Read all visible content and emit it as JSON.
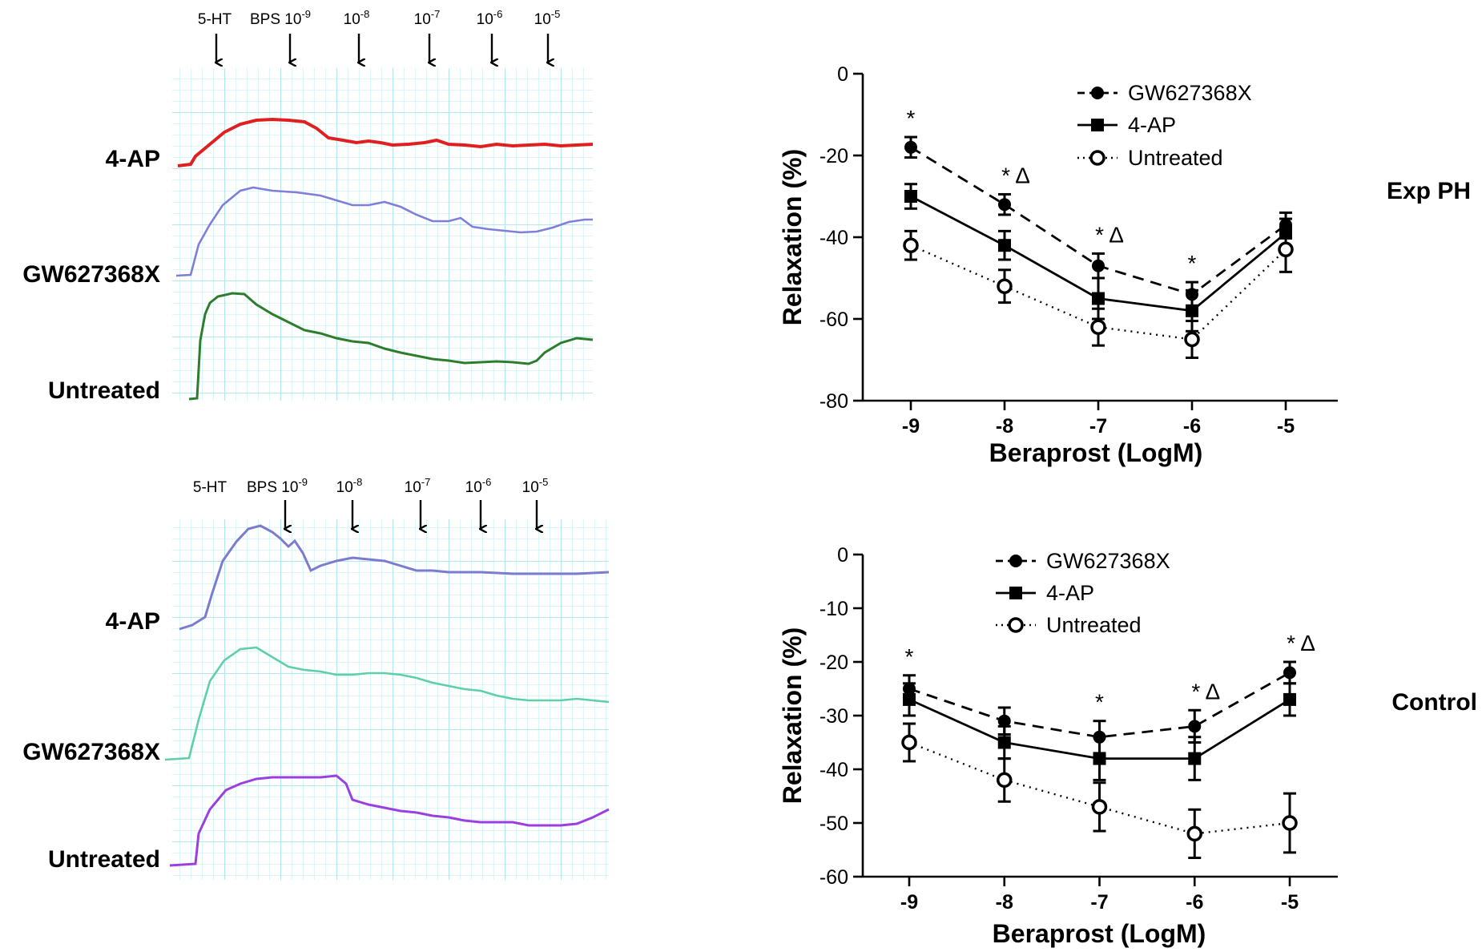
{
  "traces": {
    "top": {
      "arrow_labels": [
        "5-HT",
        "BPS 10",
        "10",
        "10",
        "10",
        "10"
      ],
      "arrow_exponents": [
        "",
        "-9",
        "-8",
        "-7",
        "-6",
        "-5"
      ],
      "trace_labels": [
        "4-AP",
        "GW627368X",
        "Untreated"
      ],
      "trace_colors": [
        "#e02020",
        "#7f7fd8",
        "#2e7d2e"
      ]
    },
    "bottom": {
      "arrow_labels": [
        "5-HT",
        "BPS 10",
        "10",
        "10",
        "10",
        "10"
      ],
      "arrow_exponents": [
        "",
        "-9",
        "-8",
        "-7",
        "-6",
        "-5"
      ],
      "trace_labels": [
        "4-AP",
        "GW627368X",
        "Untreated"
      ],
      "trace_colors": [
        "#7b7bd0",
        "#5fcfa8",
        "#9b3fe0"
      ]
    },
    "grid_color": "#c8f0f4"
  },
  "chart_data": [
    {
      "type": "line",
      "panel_label": "Exp PH",
      "xlabel": "Beraprost (LogM)",
      "ylabel": "Relaxation (%)",
      "x": [
        -9,
        -8,
        -7,
        -6,
        -5
      ],
      "xticks": [
        "-9",
        "-8",
        "-7",
        "-6",
        "-5"
      ],
      "ylim": [
        -80,
        0
      ],
      "yticks": [
        "0",
        "-20",
        "-40",
        "-60",
        "-80"
      ],
      "ytick_values": [
        0,
        -20,
        -40,
        -60,
        -80
      ],
      "legend": [
        "GW627368X",
        "4-AP",
        "Untreated"
      ],
      "legend_position": "top-right",
      "series": [
        {
          "name": "GW627368X",
          "marker": "filled-circle",
          "line": "dashed",
          "values": [
            -18,
            -32,
            -47,
            -54,
            -37
          ],
          "errors": [
            2.5,
            2.5,
            3,
            3,
            3
          ]
        },
        {
          "name": "4-AP",
          "marker": "filled-square",
          "line": "solid",
          "values": [
            -30,
            -42,
            -55,
            -58,
            -39
          ],
          "errors": [
            3,
            3.5,
            5,
            5,
            3.5
          ]
        },
        {
          "name": "Untreated",
          "marker": "open-circle",
          "line": "dotted",
          "values": [
            -42,
            -52,
            -62,
            -65,
            -43
          ],
          "errors": [
            3.5,
            4,
            4.5,
            4.5,
            5.5
          ]
        }
      ],
      "annotations": [
        {
          "x": -9,
          "text": "*"
        },
        {
          "x": -8,
          "text": "* Δ"
        },
        {
          "x": -7,
          "text": "* Δ"
        },
        {
          "x": -6,
          "text": "*"
        }
      ]
    },
    {
      "type": "line",
      "panel_label": "Control",
      "xlabel": "Beraprost (LogM)",
      "ylabel": "Relaxation (%)",
      "x": [
        -9,
        -8,
        -7,
        -6,
        -5
      ],
      "xticks": [
        "-9",
        "-8",
        "-7",
        "-6",
        "-5"
      ],
      "ylim": [
        -60,
        0
      ],
      "yticks": [
        "0",
        "-10",
        "-20",
        "-30",
        "-40",
        "-50",
        "-60"
      ],
      "ytick_values": [
        0,
        -10,
        -20,
        -30,
        -40,
        -50,
        -60
      ],
      "legend": [
        "GW627368X",
        "4-AP",
        "Untreated"
      ],
      "legend_position": "top-left",
      "series": [
        {
          "name": "GW627368X",
          "marker": "filled-circle",
          "line": "dashed",
          "values": [
            -25,
            -31,
            -34,
            -32,
            -22
          ],
          "errors": [
            2.5,
            2.5,
            3,
            3,
            2
          ]
        },
        {
          "name": "4-AP",
          "marker": "filled-square",
          "line": "solid",
          "values": [
            -27,
            -35,
            -38,
            -38,
            -27
          ],
          "errors": [
            3,
            3,
            4,
            4,
            3
          ]
        },
        {
          "name": "Untreated",
          "marker": "open-circle",
          "line": "dotted",
          "values": [
            -35,
            -42,
            -47,
            -52,
            -50
          ],
          "errors": [
            3.5,
            4,
            4.5,
            4.5,
            5.5
          ]
        }
      ],
      "annotations": [
        {
          "x": -9,
          "text": "*"
        },
        {
          "x": -7,
          "text": "*"
        },
        {
          "x": -6,
          "text": "* Δ"
        },
        {
          "x": -5,
          "text": "* Δ"
        }
      ]
    }
  ]
}
